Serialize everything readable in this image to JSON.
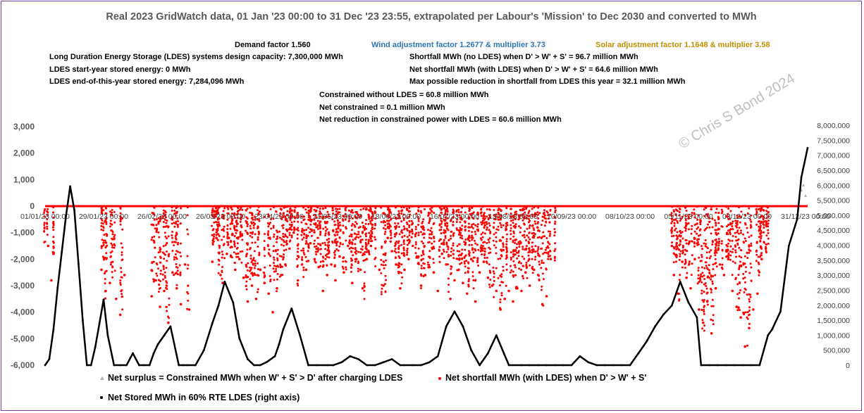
{
  "chart_data": {
    "type": "scatter",
    "title": "Real 2023 GridWatch data, 01 Jan '23 00:00 to 31 Dec '23 23:55,  extrapolated per Labour's 'Mission' to Dec 2030 and converted to MWh",
    "notes": {
      "demand": "Demand factor 1.560",
      "wind": "Wind adjustment factor 1.2677 & multiplier 3.73",
      "solar": "Solar adjustment factor 1.1648 & multiplier 3.58",
      "ldes_capacity": "Long Duration Energy Storage (LDES) systems design capacity: 7,300,000 MWh",
      "ldes_start": "LDES start-year stored energy: 0 MWh",
      "ldes_end": "LDES end-of-this-year stored energy: 7,284,096 MWh",
      "shortfall_no_ldes": "Shortfall MWh (no LDES) when D' > W' + S' = 96.7 million MWh",
      "net_shortfall": "Net shortfall MWh (with LDES) when D' > W' + S' = 64.6 million MWh",
      "max_reduction": "Max possible reduction in shortfall from LDES this year = 32.1 million MWh",
      "constrained_without": "Constrained without LDES = 60.8 million MWh",
      "net_constrained": "Net constrained =  0.1 million MWh",
      "net_reduction": "Net reduction in constrained power with LDES = 60.6 million MWh"
    },
    "watermark": "© Chris S Bond  2024",
    "y_left": {
      "min": -6000,
      "max": 3000,
      "ticks": [
        "3,000",
        "2,000",
        "1,000",
        "0",
        "-1,000",
        "-2,000",
        "-3,000",
        "-4,000",
        "-5,000",
        "-6,000"
      ]
    },
    "y_right": {
      "min": 0,
      "max": 8000000,
      "ticks": [
        "8,000,000",
        "7,500,000",
        "7,000,000",
        "6,500,000",
        "6,000,000",
        "5,500,000",
        "5,000,000",
        "4,500,000",
        "4,000,000",
        "3,500,000",
        "3,000,000",
        "2,500,000",
        "2,000,000",
        "1,500,000",
        "1,000,000",
        "500,000",
        "0"
      ]
    },
    "x_ticks": [
      "01/01/23 00:00",
      "29/01/23 00:00",
      "26/02/23 00:00",
      "26/03/23 00:00",
      "23/04/23 00:00",
      "21/05/23 00:00",
      "18/06/23 00:00",
      "16/07/23 00:00",
      "13/08/23 00:00",
      "10/09/23 00:00",
      "08/10/23 00:00",
      "05/11/23 00:00",
      "03/12/23 00:00",
      "31/12/23 00:00"
    ],
    "x_range_days": [
      0,
      365
    ],
    "legend": [
      {
        "label": "Net surplus = Constrained MWh when W' + S' > D' after charging LDES",
        "color": "#b0b0b0",
        "marker": "triangle"
      },
      {
        "label": "Net shortfall MWh (with LDES) when D' > W' + S'",
        "color": "#ff0000",
        "marker": "dot"
      },
      {
        "label": "Net Stored MWh in 60% RTE LDES (right axis)",
        "color": "#000000",
        "marker": "dot"
      }
    ],
    "series_stored": {
      "name": "Net Stored MWh in 60% RTE LDES (right axis)",
      "x_days": [
        0,
        2,
        4,
        6,
        8,
        10,
        12,
        14,
        16,
        18,
        20,
        22,
        24,
        26,
        28,
        30,
        33,
        36,
        39,
        42,
        45,
        47,
        50,
        52,
        54,
        57,
        60,
        64,
        66,
        68,
        72,
        76,
        80,
        83,
        86,
        90,
        93,
        97,
        100,
        103,
        106,
        110,
        112,
        114,
        118,
        122,
        126,
        130,
        135,
        138,
        142,
        146,
        150,
        154,
        158,
        162,
        166,
        170,
        172,
        176,
        180,
        184,
        188,
        192,
        196,
        200,
        204,
        208,
        212,
        216,
        222,
        228,
        232,
        236,
        240,
        244,
        248,
        252,
        256,
        260,
        264,
        268,
        272,
        276,
        280,
        284,
        288,
        292,
        296,
        300,
        304,
        308,
        312,
        314,
        318,
        322,
        326,
        330,
        334,
        338,
        342,
        346,
        348,
        352,
        356,
        360,
        362,
        365
      ],
      "values": [
        0,
        200000,
        1200000,
        2600000,
        3800000,
        5000000,
        6000000,
        5200000,
        3400000,
        1500000,
        0,
        0,
        600000,
        1400000,
        2200000,
        1000000,
        0,
        0,
        0,
        400000,
        0,
        0,
        0,
        400000,
        700000,
        1000000,
        1300000,
        0,
        0,
        0,
        0,
        500000,
        1400000,
        2000000,
        2800000,
        2100000,
        900000,
        200000,
        0,
        0,
        100000,
        300000,
        700000,
        1200000,
        1900000,
        1000000,
        0,
        0,
        0,
        0,
        100000,
        300000,
        200000,
        0,
        0,
        100000,
        200000,
        0,
        0,
        0,
        0,
        100000,
        300000,
        1300000,
        1800000,
        1300000,
        500000,
        0,
        400000,
        1000000,
        0,
        0,
        0,
        0,
        0,
        0,
        0,
        0,
        300000,
        100000,
        0,
        0,
        0,
        0,
        0,
        400000,
        800000,
        1300000,
        1700000,
        2000000,
        2800000,
        2100000,
        1600000,
        0,
        0,
        0,
        0,
        0,
        0,
        0,
        0,
        1000000,
        1200000,
        1800000,
        4000000,
        4900000,
        6300000,
        7284096
      ]
    },
    "series_shortfall": {
      "name": "Net shortfall MWh (with LDES) when D' > W' + S'",
      "x_days": [
        1.5,
        3,
        4,
        27,
        29,
        31,
        34,
        36,
        38,
        51,
        53,
        55,
        57,
        59,
        61,
        63,
        65,
        67,
        69,
        80,
        82,
        84,
        85,
        87,
        88,
        89,
        91,
        93,
        95,
        97,
        99,
        101,
        103,
        105,
        107,
        109,
        111,
        113,
        115,
        117,
        119,
        121,
        123,
        125,
        127,
        129,
        131,
        133,
        135,
        137,
        139,
        141,
        143,
        145,
        147,
        149,
        151,
        152,
        154,
        156,
        160,
        162,
        164,
        166,
        168,
        170,
        172,
        174,
        176,
        178,
        180,
        182,
        184,
        186,
        188,
        190,
        192,
        194,
        196,
        198,
        200,
        202,
        204,
        206,
        208,
        210,
        212,
        214,
        216,
        218,
        220,
        222,
        224,
        226,
        228,
        230,
        232,
        234,
        236,
        238,
        240,
        242,
        300,
        301,
        303,
        305,
        307,
        309,
        311,
        313,
        315,
        317,
        319,
        321,
        323,
        325,
        327,
        329,
        331,
        333,
        335,
        337,
        339,
        341,
        343,
        345
      ],
      "values": [
        -1500,
        -2800,
        -1800,
        -2400,
        -3200,
        -2900,
        -3500,
        -4100,
        -2600,
        -3400,
        -2800,
        -3800,
        -3200,
        -4400,
        -2500,
        -3100,
        -3700,
        -2200,
        -3900,
        -2100,
        -1200,
        -2600,
        -2900,
        -1800,
        -1200,
        -1900,
        -2400,
        -2000,
        -2700,
        -3600,
        -3000,
        -3500,
        -2400,
        -2900,
        -3300,
        -4000,
        -3100,
        -2600,
        -2200,
        -1600,
        -1000,
        -2800,
        -2200,
        -2400,
        -1400,
        -2000,
        -2300,
        -3200,
        -2600,
        -2200,
        -2800,
        -1900,
        -2500,
        -1500,
        -2900,
        -2000,
        -2400,
        -3100,
        -2000,
        -1500,
        -2400,
        -3000,
        -1200,
        -1700,
        -2200,
        -3100,
        -2400,
        -2000,
        -1500,
        -1900,
        -3000,
        -2600,
        -2300,
        -2500,
        -3200,
        -1800,
        -2200,
        -3500,
        -2800,
        -2400,
        -2900,
        -3300,
        -2000,
        -3600,
        -2500,
        -2100,
        -2700,
        -3000,
        -3200,
        -3900,
        -3500,
        -3200,
        -3600,
        -3100,
        -3200,
        -2500,
        -3000,
        -2400,
        -2600,
        -3700,
        -3400,
        -2000,
        -1500,
        -2600,
        -3300,
        -2100,
        -2700,
        -3100,
        -2000,
        -3900,
        -4400,
        -3600,
        -4800,
        -3100,
        -2200,
        -2600,
        -2000,
        -3200,
        -3800,
        -4200,
        -5300,
        -4600,
        -3900,
        -3300,
        -2000,
        -1600
      ],
      "bands": [
        [
          0,
          1
        ],
        [
          3,
          4
        ],
        [
          27,
          38
        ],
        [
          51,
          69
        ],
        [
          80,
          244
        ],
        [
          300,
          346
        ]
      ]
    },
    "series_surplus": {
      "name": "Net surplus = Constrained MWh when W' + S' > D' after charging LDES",
      "x_days": [
        361,
        362,
        363,
        364
      ],
      "values": [
        300,
        600,
        800,
        400
      ]
    }
  }
}
